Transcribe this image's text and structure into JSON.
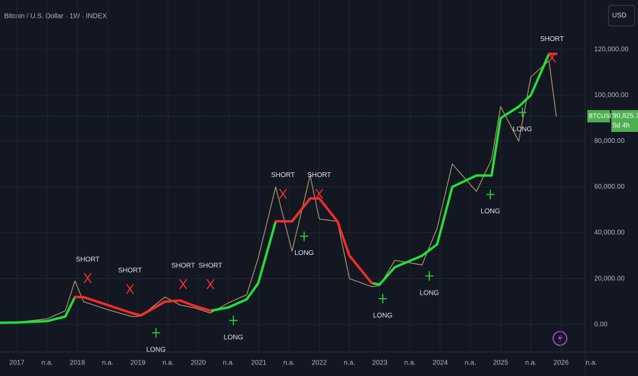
{
  "chart_data": {
    "type": "line",
    "title": "Bitcoin / U.S. Dollar · 1W · INDEX",
    "currency": "USD",
    "x": [
      2016.72,
      2017.0,
      2017.5,
      2017.8,
      2017.96,
      2018.1,
      2018.5,
      2018.9,
      2019.05,
      2019.45,
      2019.7,
      2019.95,
      2020.2,
      2020.5,
      2020.8,
      2020.99,
      2021.28,
      2021.55,
      2021.85,
      2022.0,
      2022.3,
      2022.5,
      2022.87,
      2023.0,
      2023.25,
      2023.7,
      2023.95,
      2024.2,
      2024.6,
      2024.85,
      2025.0,
      2025.3,
      2025.5,
      2025.8,
      2025.92
    ],
    "series": [
      {
        "color": "#b59a6c",
        "width": 1.2,
        "values": [
          600,
          1000,
          2500,
          6000,
          19000,
          10000,
          6500,
          3500,
          3700,
          12000,
          8500,
          7200,
          5000,
          9500,
          13000,
          29000,
          60000,
          32000,
          65000,
          46000,
          45000,
          20000,
          16500,
          17000,
          28000,
          26000,
          42000,
          70000,
          58000,
          72000,
          95000,
          80000,
          108000,
          115000,
          90825.78
        ]
      },
      {
        "color": "#22e03a",
        "width": 3.5,
        "values": [
          800,
          900,
          1500,
          3500,
          12000,
          null,
          null,
          null,
          4000,
          10000,
          null,
          null,
          6000,
          7500,
          11000,
          18000,
          45000,
          45000,
          55000,
          null,
          null,
          null,
          18000,
          17500,
          25000,
          30000,
          35000,
          60000,
          65000,
          65000,
          90000,
          95000,
          100000,
          118000,
          null
        ]
      },
      {
        "color": "#ff2a2a",
        "width": 3.5,
        "values": [
          null,
          null,
          null,
          null,
          12000,
          12000,
          8500,
          5000,
          4000,
          10000,
          10500,
          8000,
          6000,
          null,
          null,
          null,
          45000,
          45000,
          55000,
          55000,
          45000,
          30000,
          18000,
          null,
          null,
          null,
          null,
          null,
          null,
          null,
          null,
          null,
          null,
          118000,
          118000
        ]
      }
    ],
    "signals": [
      {
        "label": "SHORT",
        "x": 2018.17,
        "y": 20300
      },
      {
        "label": "SHORT",
        "x": 2018.87,
        "y": 15500
      },
      {
        "label": "LONG",
        "x": 2019.3,
        "y": -3600
      },
      {
        "label": "SHORT",
        "x": 2019.75,
        "y": 17600
      },
      {
        "label": "SHORT",
        "x": 2020.2,
        "y": 17600
      },
      {
        "label": "LONG",
        "x": 2020.58,
        "y": 1800
      },
      {
        "label": "SHORT",
        "x": 2021.4,
        "y": 57000
      },
      {
        "label": "LONG",
        "x": 2021.75,
        "y": 38500
      },
      {
        "label": "SHORT",
        "x": 2022.0,
        "y": 57000
      },
      {
        "label": "LONG",
        "x": 2023.05,
        "y": 11300
      },
      {
        "label": "LONG",
        "x": 2023.82,
        "y": 21200
      },
      {
        "label": "LONG",
        "x": 2024.83,
        "y": 56700
      },
      {
        "label": "LONG",
        "x": 2025.36,
        "y": 92500
      },
      {
        "label": "SHORT",
        "x": 2025.85,
        "y": 116400
      }
    ],
    "last_price": {
      "symbol": "BTCUSD",
      "value": 90825.78,
      "value_label": "90,825.78",
      "countdown": "5d 4h"
    },
    "xlim": [
      2016.72,
      2026.4
    ],
    "ylim": [
      -12000,
      141500
    ],
    "xticks": [
      {
        "value": 2017,
        "label": "2017"
      },
      {
        "value": 2017.5,
        "label": "n.a."
      },
      {
        "value": 2018,
        "label": "2018"
      },
      {
        "value": 2018.5,
        "label": "n.a."
      },
      {
        "value": 2019,
        "label": "2019"
      },
      {
        "value": 2019.5,
        "label": "n.a."
      },
      {
        "value": 2020,
        "label": "2020"
      },
      {
        "value": 2020.5,
        "label": "n.a."
      },
      {
        "value": 2021,
        "label": "2021"
      },
      {
        "value": 2021.5,
        "label": "n.a."
      },
      {
        "value": 2022,
        "label": "2022"
      },
      {
        "value": 2022.5,
        "label": "n.a."
      },
      {
        "value": 2023,
        "label": "2023"
      },
      {
        "value": 2023.5,
        "label": "n.a."
      },
      {
        "value": 2024,
        "label": "2024"
      },
      {
        "value": 2024.5,
        "label": "n.a."
      },
      {
        "value": 2025,
        "label": "2025"
      },
      {
        "value": 2025.5,
        "label": "n.a."
      },
      {
        "value": 2026,
        "label": "2026"
      },
      {
        "value": 2026.5,
        "label": "n.a."
      }
    ],
    "yticks": [
      {
        "value": 0,
        "label": "0.00"
      },
      {
        "value": 20000,
        "label": "20,000.00"
      },
      {
        "value": 40000,
        "label": "40,000.00"
      },
      {
        "value": 60000,
        "label": "60,000.00"
      },
      {
        "value": 80000,
        "label": "80,000.00"
      },
      {
        "value": 100000,
        "label": "100,000.00"
      },
      {
        "value": 120000,
        "label": "120,000.00"
      }
    ],
    "grid": true
  }
}
